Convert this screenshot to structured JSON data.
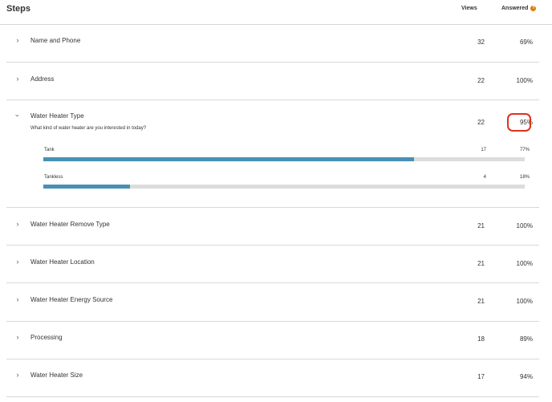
{
  "header": {
    "title": "Steps",
    "views_label": "Views",
    "answered_label": "Answered",
    "info_icon": "info-icon",
    "info_glyph": "?"
  },
  "steps": [
    {
      "name": "Name and Phone",
      "views": "32",
      "answered": "69%",
      "expanded": false
    },
    {
      "name": "Address",
      "views": "22",
      "answered": "100%",
      "expanded": false
    },
    {
      "name": "Water Heater Type",
      "views": "22",
      "answered": "95%",
      "expanded": true,
      "question": "What kind of water heater are you interested in today?",
      "answers": [
        {
          "label": "Tank",
          "count": "17",
          "percent": "77%",
          "fill": 0.77
        },
        {
          "label": "Tankless",
          "count": "4",
          "percent": "18%",
          "fill": 0.18
        }
      ]
    },
    {
      "name": "Water Heater Remove Type",
      "views": "21",
      "answered": "100%",
      "expanded": false
    },
    {
      "name": "Water Heater Location",
      "views": "21",
      "answered": "100%",
      "expanded": false
    },
    {
      "name": "Water Heater Energy Source",
      "views": "21",
      "answered": "100%",
      "expanded": false
    },
    {
      "name": "Processing",
      "views": "18",
      "answered": "89%",
      "expanded": false
    },
    {
      "name": "Water Heater Size",
      "views": "17",
      "answered": "94%",
      "expanded": false
    }
  ],
  "colors": {
    "bar_fill": "#4a90b4",
    "bar_track": "#dcdcdc",
    "highlight": "#e0311c",
    "info": "#e07b12"
  }
}
